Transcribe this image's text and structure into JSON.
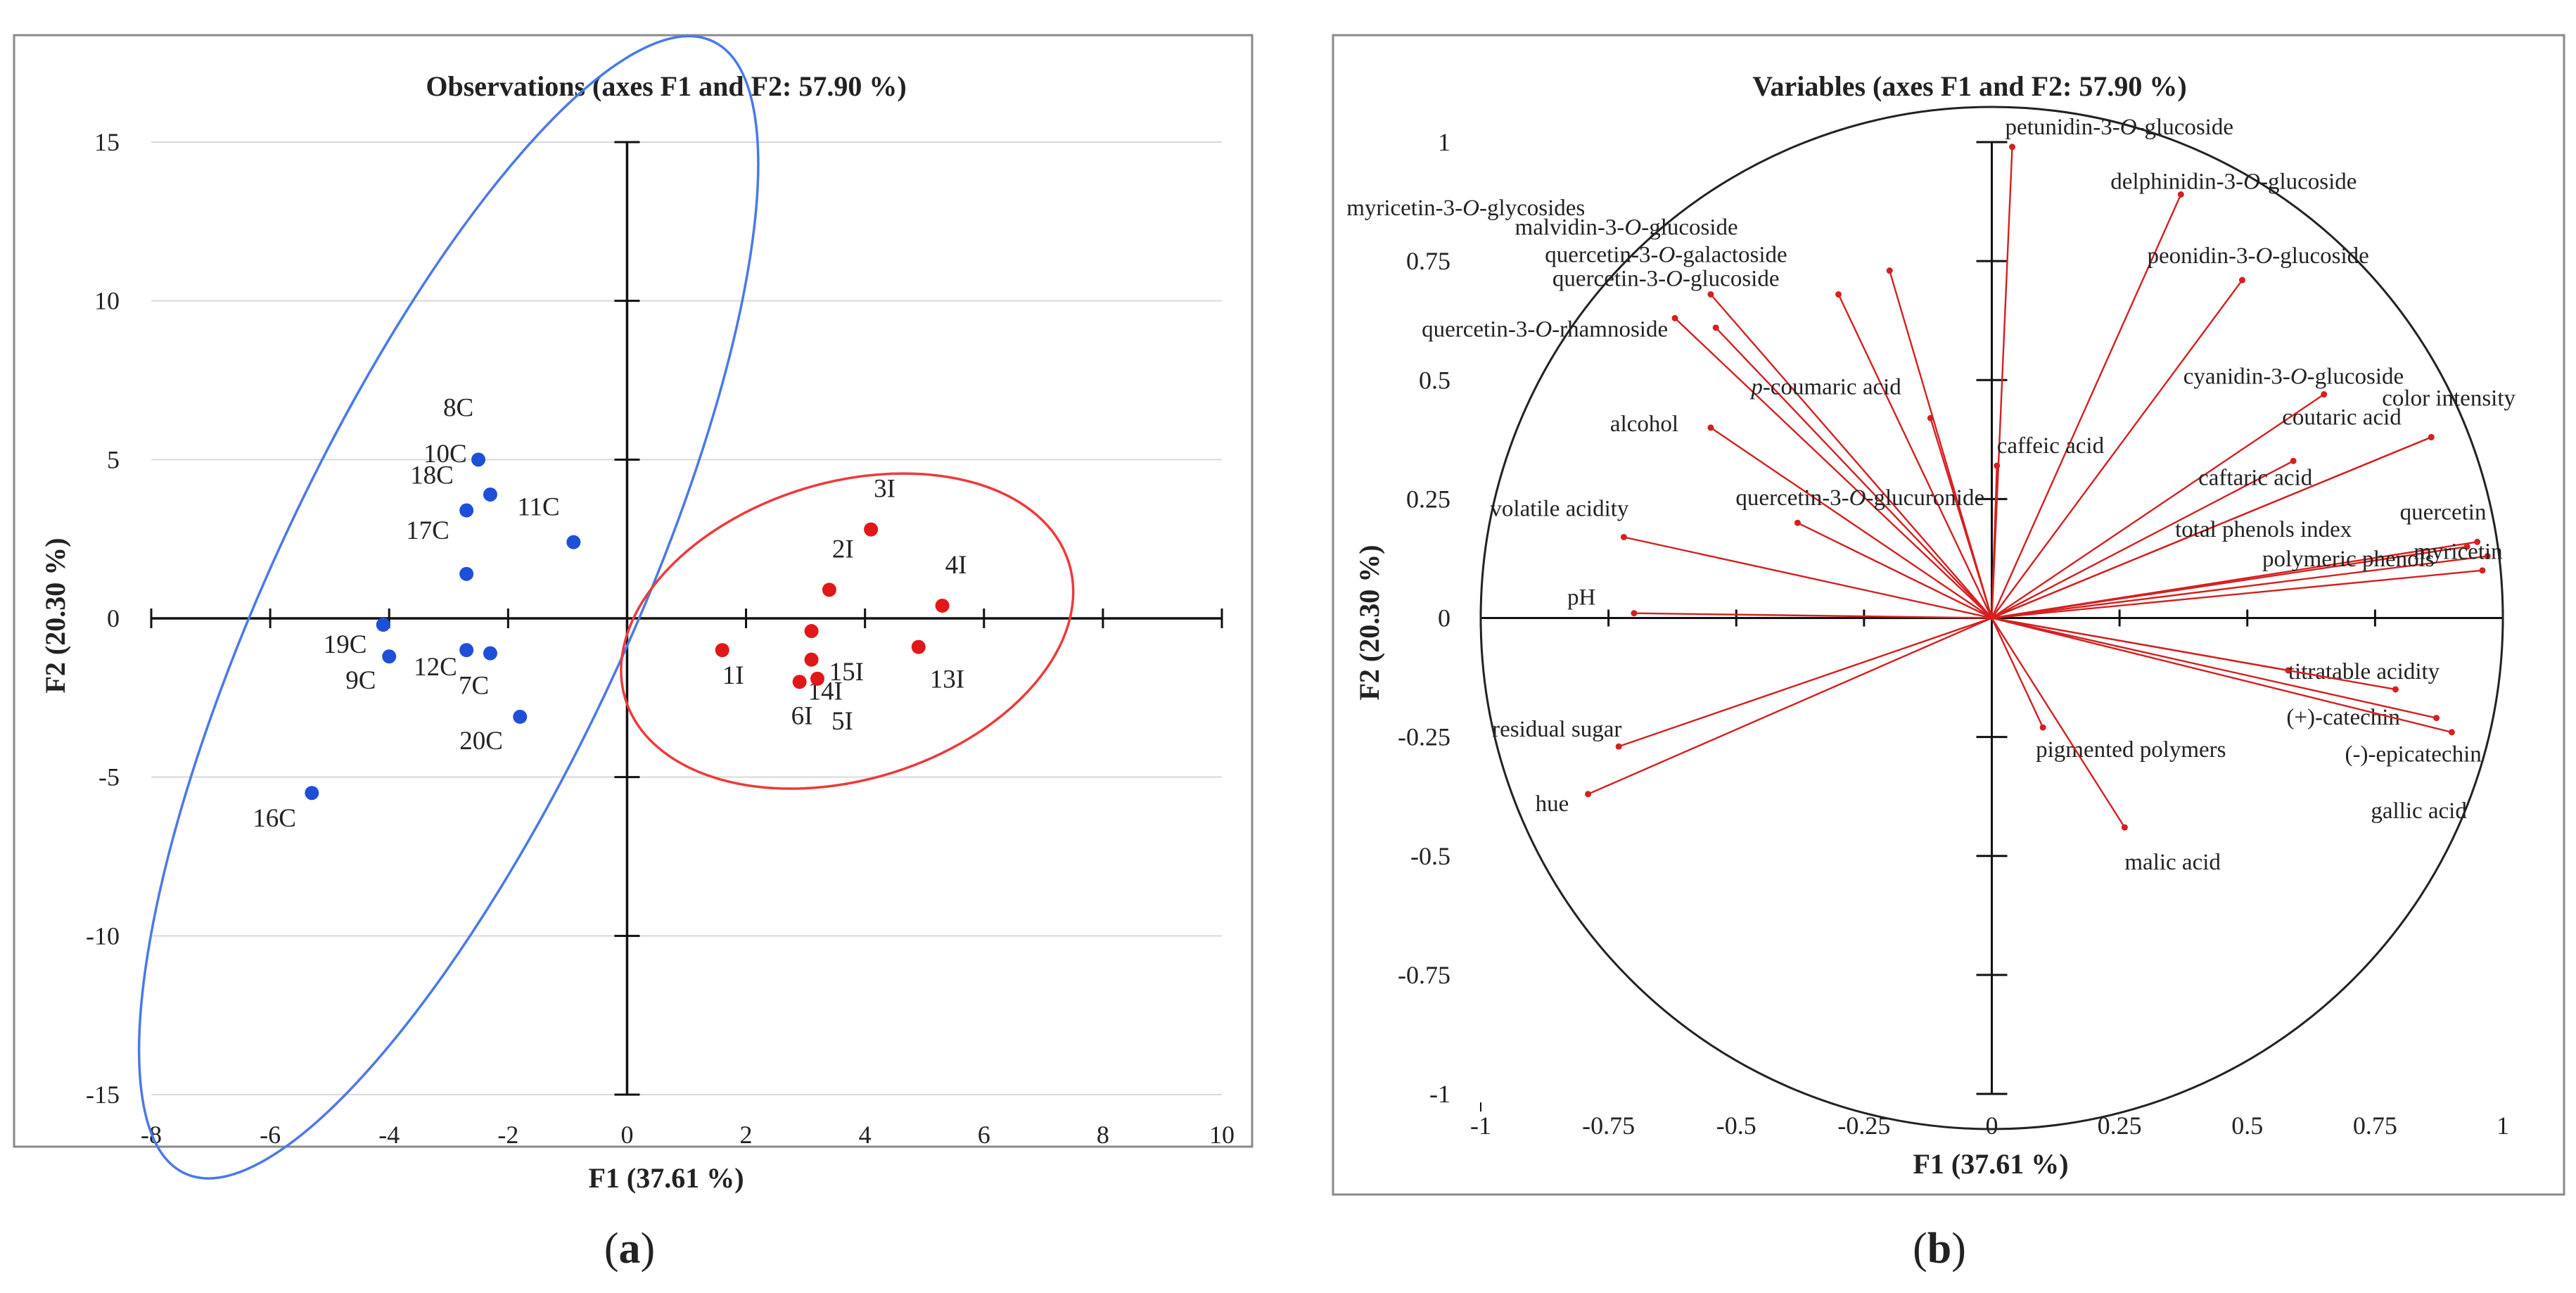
{
  "chart_data": [
    {
      "type": "scatter",
      "panel": "a",
      "caption": [
        "(",
        "a",
        ")"
      ],
      "title": "Observations (axes F1 and F2: 57.90 %)",
      "xlabel": "F1 (37.61 %)",
      "ylabel": "F2 (20.30 %)",
      "xlim": [
        -8,
        10
      ],
      "ylim": [
        -15,
        15
      ],
      "xticks": [
        -8,
        -6,
        -4,
        -2,
        0,
        2,
        4,
        6,
        8,
        10
      ],
      "yticks": [
        -15,
        -10,
        -5,
        0,
        5,
        10,
        15
      ],
      "colors": {
        "C": "#1f4fd6",
        "I": "#e01818",
        "ellipse_C": "#4a79e8",
        "ellipse_I": "#ee3a3a"
      },
      "series": [
        {
          "name": "C",
          "points": [
            {
              "label": "8C",
              "x": -2.5,
              "y": 5.0
            },
            {
              "label": "10C",
              "x": -2.3,
              "y": 3.9
            },
            {
              "label": "18C",
              "x": -2.7,
              "y": 3.4
            },
            {
              "label": "11C",
              "x": -0.9,
              "y": 2.4
            },
            {
              "label": "17C",
              "x": -2.7,
              "y": 1.4
            },
            {
              "label": "19C",
              "x": -4.1,
              "y": -0.2
            },
            {
              "label": "9C",
              "x": -4.0,
              "y": -1.2
            },
            {
              "label": "12C",
              "x": -2.7,
              "y": -1.0
            },
            {
              "label": "7C",
              "x": -2.3,
              "y": -1.1
            },
            {
              "label": "20C",
              "x": -1.8,
              "y": -3.1
            },
            {
              "label": "16C",
              "x": -5.3,
              "y": -5.5
            }
          ]
        },
        {
          "name": "I",
          "points": [
            {
              "label": "3I",
              "x": 4.1,
              "y": 2.8
            },
            {
              "label": "2I",
              "x": 3.4,
              "y": 0.9
            },
            {
              "label": "4I",
              "x": 5.3,
              "y": 0.4
            },
            {
              "label": "1I",
              "x": 1.6,
              "y": -1.0
            },
            {
              "label": "15I",
              "x": 3.1,
              "y": -0.4
            },
            {
              "label": "14I",
              "x": 3.1,
              "y": -1.3
            },
            {
              "label": "5I",
              "x": 3.2,
              "y": -1.9
            },
            {
              "label": "6I",
              "x": 2.9,
              "y": -2.0
            },
            {
              "label": "13I",
              "x": 4.9,
              "y": -0.9
            }
          ]
        }
      ]
    },
    {
      "type": "scatter",
      "panel": "b",
      "caption": [
        "(",
        "b",
        ")"
      ],
      "title": "Variables (axes F1 and F2: 57.90 %)",
      "xlabel": "F1 (37.61 %)",
      "ylabel": "F2 (20.30 %)",
      "xlim": [
        -1,
        1
      ],
      "ylim": [
        -1,
        1
      ],
      "xticks": [
        "-1",
        "-0.75",
        "-0.5",
        "-0.25",
        "0",
        "0.25",
        "0.5",
        "0.75",
        "1"
      ],
      "yticks": [
        "-1",
        "-0.75",
        "-0.5",
        "-0.25",
        "0",
        "0.25",
        "0.5",
        "0.75",
        "1"
      ],
      "color": "#d42020",
      "variables": [
        {
          "label": "petunidin-3-O-glucoside",
          "parts": [
            "petunidin-3-",
            "O",
            "-glucoside"
          ],
          "x": 0.04,
          "y": 0.99
        },
        {
          "label": "delphinidin-3-O-glucoside",
          "parts": [
            "delphinidin-3-",
            "O",
            "-glucoside"
          ],
          "x": 0.37,
          "y": 0.89
        },
        {
          "label": "myricetin-3-O-glycosides",
          "parts": [
            "myricetin-3-",
            "O",
            "-glycosides"
          ],
          "x": -0.54,
          "y": 0.61
        },
        {
          "label": "malvidin-3-O-glucoside",
          "parts": [
            "malvidin-3-",
            "O",
            "-glucoside"
          ],
          "x": -0.3,
          "y": 0.68
        },
        {
          "label": "quercetin-3-O-galactoside",
          "parts": [
            "quercetin-3-",
            "O",
            "-galactoside"
          ],
          "x": -0.2,
          "y": 0.73
        },
        {
          "label": "peonidin-3-O-glucoside",
          "parts": [
            "peonidin-3-",
            "O",
            "-glucoside"
          ],
          "x": 0.49,
          "y": 0.71
        },
        {
          "label": "quercetin-3-O-glucoside",
          "parts": [
            "quercetin-3-",
            "O",
            "-glucoside"
          ],
          "x": -0.55,
          "y": 0.68
        },
        {
          "label": "quercetin-3-O-rhamnoside",
          "parts": [
            "quercetin-3-",
            "O",
            "-rhamnoside"
          ],
          "x": -0.62,
          "y": 0.63
        },
        {
          "label": "p-coumaric acid",
          "parts": [
            "",
            "p",
            "-coumaric acid"
          ],
          "x": -0.12,
          "y": 0.42
        },
        {
          "label": "alcohol",
          "parts": [
            "alcohol",
            "",
            ""
          ],
          "x": -0.55,
          "y": 0.4
        },
        {
          "label": "caffeic acid",
          "parts": [
            "caffeic acid",
            "",
            ""
          ],
          "x": 0.01,
          "y": 0.32
        },
        {
          "label": "cyanidin-3-O-glucoside",
          "parts": [
            "cyanidin-3-",
            "O",
            "-glucoside"
          ],
          "x": 0.65,
          "y": 0.47
        },
        {
          "label": "color intensity",
          "parts": [
            "color intensity",
            "",
            ""
          ],
          "x": 0.86,
          "y": 0.38
        },
        {
          "label": "coutaric acid",
          "parts": [
            "coutaric acid",
            "",
            ""
          ],
          "x": 0.86,
          "y": 0.38
        },
        {
          "label": "caftaric acid",
          "parts": [
            "caftaric acid",
            "",
            ""
          ],
          "x": 0.59,
          "y": 0.33
        },
        {
          "label": "quercetin-3-O-glucuronide",
          "parts": [
            "quercetin-3-",
            "O",
            "-glucuronide"
          ],
          "x": -0.38,
          "y": 0.2
        },
        {
          "label": "volatile acidity",
          "parts": [
            "volatile acidity",
            "",
            ""
          ],
          "x": -0.72,
          "y": 0.17
        },
        {
          "label": "quercetin",
          "parts": [
            "quercetin",
            "",
            ""
          ],
          "x": 0.95,
          "y": 0.16
        },
        {
          "label": "total phenols index",
          "parts": [
            "total phenols index",
            "",
            ""
          ],
          "x": 0.93,
          "y": 0.15
        },
        {
          "label": "myricetin",
          "parts": [
            "myricetin",
            "",
            ""
          ],
          "x": 0.97,
          "y": 0.13
        },
        {
          "label": "polymeric phenols",
          "parts": [
            "polymeric phenols",
            "",
            ""
          ],
          "x": 0.96,
          "y": 0.1
        },
        {
          "label": "pH",
          "parts": [
            "pH",
            "",
            ""
          ],
          "x": -0.7,
          "y": 0.01
        },
        {
          "label": "titratable acidity",
          "parts": [
            "titratable acidity",
            "",
            ""
          ],
          "x": 0.58,
          "y": -0.11
        },
        {
          "label": "(+)-catechin",
          "parts": [
            "(+)-catechin",
            "",
            ""
          ],
          "x": 0.79,
          "y": -0.15
        },
        {
          "label": "(-)-epicatechin",
          "parts": [
            "(-)-epicatechin",
            "",
            ""
          ],
          "x": 0.87,
          "y": -0.21
        },
        {
          "label": "gallic acid",
          "parts": [
            "gallic acid",
            "",
            ""
          ],
          "x": 0.9,
          "y": -0.24
        },
        {
          "label": "residual sugar",
          "parts": [
            "residual sugar",
            "",
            ""
          ],
          "x": -0.73,
          "y": -0.27
        },
        {
          "label": "pigmented polymers",
          "parts": [
            "pigmented polymers",
            "",
            ""
          ],
          "x": 0.1,
          "y": -0.23
        },
        {
          "label": "hue",
          "parts": [
            "hue",
            "",
            ""
          ],
          "x": -0.79,
          "y": -0.37
        },
        {
          "label": "malic acid",
          "parts": [
            "malic acid",
            "",
            ""
          ],
          "x": 0.26,
          "y": -0.44
        }
      ]
    }
  ]
}
